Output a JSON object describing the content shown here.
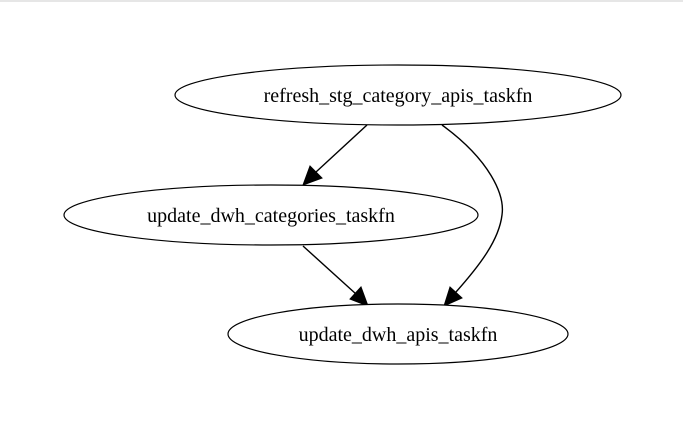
{
  "graph": {
    "nodes": [
      {
        "id": "refresh",
        "label": "refresh_stg_category_apis_taskfn"
      },
      {
        "id": "categories",
        "label": "update_dwh_categories_taskfn"
      },
      {
        "id": "apis",
        "label": "update_dwh_apis_taskfn"
      }
    ],
    "edges": [
      {
        "from": "refresh",
        "to": "categories"
      },
      {
        "from": "refresh",
        "to": "apis"
      },
      {
        "from": "categories",
        "to": "apis"
      }
    ]
  }
}
